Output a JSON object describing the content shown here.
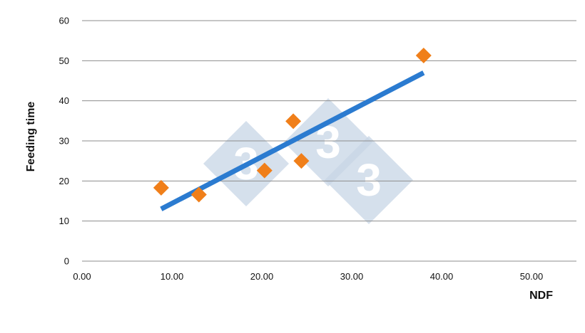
{
  "chart_data": {
    "type": "scatter",
    "xlabel": "NDF",
    "ylabel": "Feeding time",
    "xlim": [
      0,
      55
    ],
    "ylim": [
      0,
      60
    ],
    "x_ticks": [
      "0.00",
      "10.00",
      "20.00",
      "30.00",
      "40.00",
      "50.00"
    ],
    "x_tick_values": [
      0,
      10,
      20,
      30,
      40,
      50
    ],
    "y_ticks": [
      "0",
      "10",
      "20",
      "30",
      "40",
      "50",
      "60"
    ],
    "y_tick_values": [
      0,
      10,
      20,
      30,
      40,
      50,
      60
    ],
    "grid": "horizontal",
    "series": [
      {
        "x": [
          8.8,
          13.0,
          20.3,
          23.5,
          24.4,
          38.0
        ],
        "y": [
          18.3,
          16.6,
          22.6,
          34.9,
          25.0,
          51.3
        ],
        "color": "#f07f1a",
        "marker": "diamond"
      }
    ],
    "trendline": {
      "x": [
        8.8,
        38.0
      ],
      "y": [
        13.0,
        47.0
      ],
      "color": "#2b7bd0"
    },
    "watermark": {
      "text": "3",
      "color": "#c8d6e6"
    }
  }
}
